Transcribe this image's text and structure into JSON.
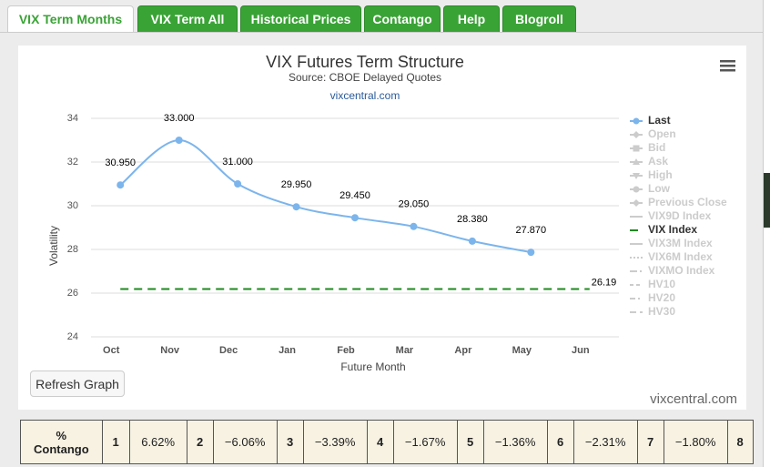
{
  "tabs": [
    "VIX Term Months",
    "VIX Term All",
    "Historical Prices",
    "Contango",
    "Help",
    "Blogroll"
  ],
  "chart_data": {
    "type": "line",
    "title": "VIX Futures Term Structure",
    "subtitle": "Source: CBOE Delayed Quotes",
    "credit": "vixcentral.com",
    "x_label": "Future Month",
    "y_label": "Volatility",
    "categories": [
      "Oct",
      "Nov",
      "Dec",
      "Jan",
      "Feb",
      "Mar",
      "Apr",
      "May",
      "Jun"
    ],
    "ylim": [
      24,
      34
    ],
    "yticks": [
      24,
      26,
      28,
      30,
      32,
      34
    ],
    "grid": true,
    "series": [
      {
        "name": "Last",
        "visible": true,
        "color": "#7cb5ec",
        "marker": "circle",
        "values": [
          30.95,
          33,
          31,
          29.95,
          29.45,
          29.05,
          28.38,
          27.87,
          null
        ],
        "value_labels": [
          "30.950",
          "33.000",
          "31.000",
          "29.950",
          "29.450",
          "29.050",
          "28.380",
          "27.870",
          null
        ]
      },
      {
        "name": "Open",
        "visible": false,
        "marker": "diamond"
      },
      {
        "name": "Bid",
        "visible": false,
        "marker": "square"
      },
      {
        "name": "Ask",
        "visible": false,
        "marker": "triangle"
      },
      {
        "name": "High",
        "visible": false,
        "marker": "triangle-down"
      },
      {
        "name": "Low",
        "visible": false,
        "marker": "circle"
      },
      {
        "name": "Previous Close",
        "visible": false,
        "marker": "diamond"
      },
      {
        "name": "VIX9D Index",
        "visible": false
      },
      {
        "name": "VIX Index",
        "visible": true,
        "color": "#1e8a1e",
        "dash": "9,6",
        "values": [
          26.19,
          26.19,
          26.19,
          26.19,
          26.19,
          26.19,
          26.19,
          26.19,
          26.19
        ]
      },
      {
        "name": "VIX3M Index",
        "visible": false
      },
      {
        "name": "VIX6M Index",
        "visible": false,
        "dash": "2,2"
      },
      {
        "name": "VIXMO Index",
        "visible": false,
        "dash": "8,3,2,3"
      },
      {
        "name": "HV10",
        "visible": false,
        "dash": "4,3"
      },
      {
        "name": "HV20",
        "visible": false,
        "dash": "6,3,2,3"
      },
      {
        "name": "HV30",
        "visible": false,
        "dash": "7,4"
      }
    ]
  },
  "button": "Refresh Graph",
  "watermark": "vixcentral.com",
  "table": {
    "rows": [
      [
        "% Contango",
        "1",
        "6.62%",
        "2",
        "−6.06%",
        "3",
        "−3.39%",
        "4",
        "−1.67%",
        "5",
        "−1.36%",
        "6",
        "−2.31%",
        "7",
        "−1.80%",
        "8"
      ]
    ]
  }
}
